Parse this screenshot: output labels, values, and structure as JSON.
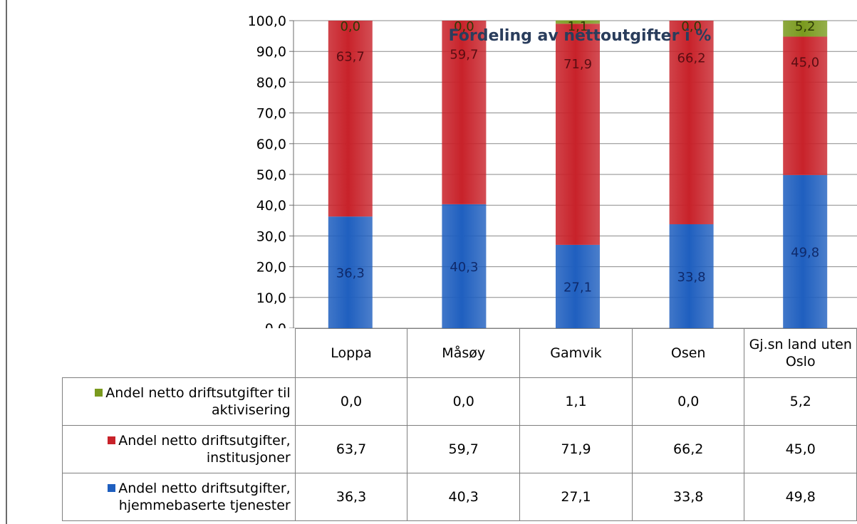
{
  "chart_data": {
    "type": "bar",
    "stacked": true,
    "title": "Fordeling av nettoutgifter i %",
    "categories": [
      "Loppa",
      "Måsøy",
      "Gamvik",
      "Osen",
      "Gj.sn land uten Oslo"
    ],
    "series": [
      {
        "name": "Andel netto driftsutgifter, hjemmebaserte tjenester",
        "color": "#1f5fbf",
        "values": [
          36.3,
          40.3,
          27.1,
          33.8,
          49.8
        ],
        "labels": [
          "36,3",
          "40,3",
          "27,1",
          "33,8",
          "49,8"
        ]
      },
      {
        "name": "Andel netto driftsutgifter, institusjoner",
        "color": "#c8222a",
        "values": [
          63.7,
          59.7,
          71.9,
          66.2,
          45.0
        ],
        "labels": [
          "63,7",
          "59,7",
          "71,9",
          "66,2",
          "45,0"
        ]
      },
      {
        "name": "Andel netto driftsutgifter til aktivisering",
        "color": "#7a9a1e",
        "values": [
          0.0,
          0.0,
          1.1,
          0.0,
          5.2
        ],
        "labels": [
          "0,0",
          "0,0",
          "1,1",
          "0,0",
          "5,2"
        ]
      }
    ],
    "ylim": [
      0,
      100
    ],
    "yticks": [
      "0,0",
      "10,0",
      "20,0",
      "30,0",
      "40,0",
      "50,0",
      "60,0",
      "70,0",
      "80,0",
      "90,0",
      "100,0"
    ],
    "grid": true,
    "legend": "data-table"
  },
  "table": {
    "category_labels": [
      "Loppa",
      "Måsøy",
      "Gamvik",
      "Osen",
      "Gj.sn land uten Oslo"
    ],
    "rows": [
      {
        "legend": "Andel netto driftsutgifter til aktivisering",
        "color": "#7a9a1e",
        "cells": [
          "0,0",
          "0,0",
          "1,1",
          "0,0",
          "5,2"
        ]
      },
      {
        "legend": "Andel netto driftsutgifter, institusjoner",
        "color": "#c8222a",
        "cells": [
          "63,7",
          "59,7",
          "71,9",
          "66,2",
          "45,0"
        ]
      },
      {
        "legend": "Andel netto driftsutgifter, hjemmebaserte tjenester",
        "color": "#1f5fbf",
        "cells": [
          "36,3",
          "40,3",
          "27,1",
          "33,8",
          "49,8"
        ]
      }
    ]
  }
}
